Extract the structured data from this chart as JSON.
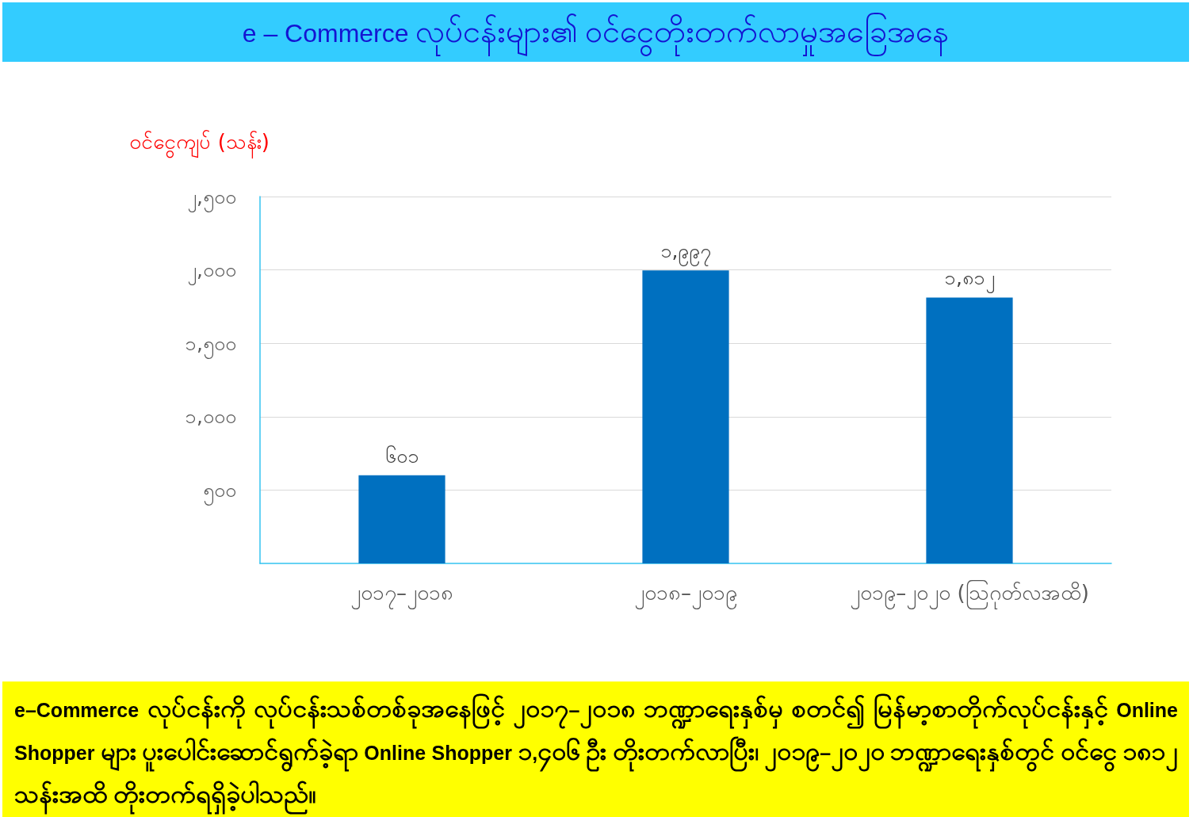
{
  "chart_data": {
    "type": "bar",
    "title": "e – Commerce လုပ်ငန်းများ၏ ဝင်ငွေတိုးတက်လာမှုအခြေအနေ",
    "ylabel": "ဝင်ငွေကျပ် (သန်း)",
    "categories": [
      "၂၀၁၇–၂၀၁၈",
      "၂၀၁၈–၂၀၁၉",
      "၂၀၁၉–၂၀၂၀ (ဩဂုတ်လအထိ)"
    ],
    "values": [
      601,
      1997,
      1812
    ],
    "value_labels": [
      "၆၀၁",
      "၁,၉၉၇",
      "၁,၈၁၂"
    ],
    "color": "#0070c0",
    "ylim": [
      0,
      2500
    ],
    "yticks": [
      {
        "value": 500,
        "label": "၅၀၀"
      },
      {
        "value": 1000,
        "label": "၁,၀၀၀"
      },
      {
        "value": 1500,
        "label": "၁,၅၀၀"
      },
      {
        "value": 2000,
        "label": "၂,၀၀၀"
      },
      {
        "value": 2500,
        "label": "၂,၅၀၀"
      }
    ],
    "grid": "y",
    "annotations": [
      "e–Commerce လုပ်ငန်းကို လုပ်ငန်းသစ်တစ်ခုအနေဖြင့် ၂၀၁၇–၂၀၁၈ ဘဏ္ဍာရေးနှစ်မှ စတင်၍ မြန်မာ့စာတိုက်လုပ်ငန်းနှင့် Online Shopper များ ပူးပေါင်းဆောင်ရွက်ခဲ့ရာ Online Shopper ၁,၄၀၆ ဦး တိုးတက်လာပြီး၊ ၂၀၁၉–၂၀၂၀ ဘဏ္ဍာရေးနှစ်တွင် ဝင်ငွေ ၁၈၁၂ သန်းအထိ တိုးတက်ရရှိခဲ့ပါသည်။"
    ]
  }
}
